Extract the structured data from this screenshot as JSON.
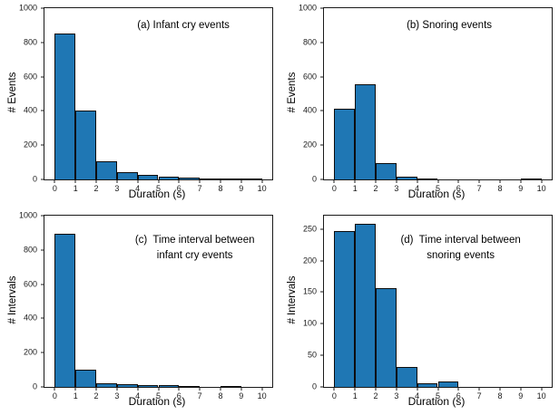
{
  "figure": {
    "background": "#ffffff",
    "bar_color": "#1f77b4",
    "bar_edge_color": "#0d0d0d",
    "spine_color": "#1a1a1a"
  },
  "chart_data": [
    {
      "id": "a",
      "type": "bar",
      "title": "(a) Infant cry events",
      "title_lines": [
        "(a) Infant cry events"
      ],
      "title_x": 0.61,
      "title_y": 0.06,
      "xlabel": "Duration (s)",
      "ylabel": "# Events",
      "xlim": [
        -0.5,
        10.5
      ],
      "ylim": [
        0,
        1000
      ],
      "xticks": [
        0,
        1,
        2,
        3,
        4,
        5,
        6,
        7,
        8,
        9,
        10
      ],
      "yticks": [
        0,
        200,
        400,
        600,
        800,
        1000
      ],
      "bin_edges": [
        0,
        1,
        2,
        3,
        4,
        5,
        6,
        7,
        8,
        9,
        10
      ],
      "values": [
        850,
        400,
        108,
        45,
        28,
        15,
        10,
        5,
        3,
        8
      ],
      "grid": false,
      "legend": null
    },
    {
      "id": "b",
      "type": "bar",
      "title": "(b) Snoring events",
      "title_lines": [
        "(b) Snoring events"
      ],
      "title_x": 0.55,
      "title_y": 0.06,
      "xlabel": "Duration (s)",
      "ylabel": "# Events",
      "xlim": [
        -0.5,
        10.5
      ],
      "ylim": [
        0,
        1000
      ],
      "xticks": [
        0,
        1,
        2,
        3,
        4,
        5,
        6,
        7,
        8,
        9,
        10
      ],
      "yticks": [
        0,
        200,
        400,
        600,
        800,
        1000
      ],
      "bin_edges": [
        0,
        1,
        2,
        3,
        4,
        5,
        6,
        7,
        8,
        9,
        10
      ],
      "values": [
        412,
        558,
        94,
        15,
        3,
        0,
        0,
        0,
        0,
        3
      ],
      "grid": false,
      "legend": null
    },
    {
      "id": "c",
      "type": "bar",
      "title": "(c) Time interval between infant cry events",
      "title_lines": [
        "(c)  Time interval between",
        "infant cry events"
      ],
      "title_x": 0.66,
      "title_y": 0.1,
      "xlabel": "Duration (s)",
      "ylabel": "# Intervals",
      "xlim": [
        -0.5,
        10.5
      ],
      "ylim": [
        0,
        1000
      ],
      "xticks": [
        0,
        1,
        2,
        3,
        4,
        5,
        6,
        7,
        8,
        9,
        10
      ],
      "yticks": [
        0,
        200,
        400,
        600,
        800,
        1000
      ],
      "bin_edges": [
        0,
        1,
        2,
        3,
        4,
        5,
        6,
        7,
        8,
        9,
        10
      ],
      "values": [
        895,
        100,
        22,
        15,
        12,
        9,
        5,
        0,
        4,
        0
      ],
      "grid": false,
      "legend": null
    },
    {
      "id": "d",
      "type": "bar",
      "title": "(d) Time interval between snoring events",
      "title_lines": [
        "(d)  Time interval between",
        "snoring events"
      ],
      "title_x": 0.6,
      "title_y": 0.1,
      "xlabel": "Duration (s)",
      "ylabel": "# Intervals",
      "xlim": [
        -0.5,
        10.5
      ],
      "ylim": [
        0,
        271
      ],
      "xticks": [
        0,
        1,
        2,
        3,
        4,
        5,
        6,
        7,
        8,
        9,
        10
      ],
      "yticks": [
        0,
        50,
        100,
        150,
        200,
        250
      ],
      "bin_edges": [
        0,
        1,
        2,
        3,
        4,
        5,
        6,
        7,
        8,
        9,
        10
      ],
      "values": [
        246,
        258,
        157,
        32,
        6,
        8,
        0,
        0,
        0,
        0
      ],
      "grid": false,
      "legend": null
    }
  ]
}
